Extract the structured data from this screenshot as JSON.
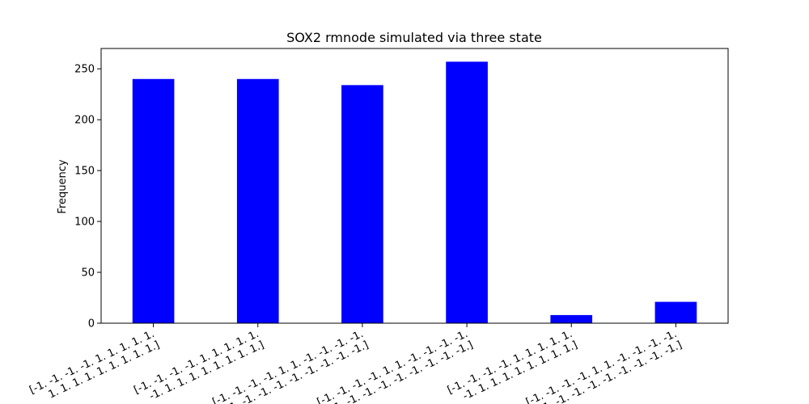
{
  "chart_data": {
    "type": "bar",
    "title": "SOX2 rmnode simulated via three state",
    "xlabel": "",
    "ylabel": "Frequency",
    "ylim": [
      0,
      270
    ],
    "yticks": [
      0,
      50,
      100,
      150,
      200,
      250
    ],
    "grid": false,
    "bar_color": "#0000ff",
    "categories": [
      [
        "[-1. -1. -1. -1. 1. 1. 1. 1. 1.",
        "1. 1. 1. 1. 1. 1. 1. 1. 1.]"
      ],
      [
        "[-1. -1. -1. -1. 1. 1. 1. 1. 1.",
        "-1. 1. 1. 1. 1. 1. 1. 1. 1.]"
      ],
      [
        "[-1. -1. -1. -1. 1. 1. -1. -1. -1. -1.",
        "1. -1. -1. -1. -1. -1. -1. -1. -1.]"
      ],
      [
        "[-1. -1. -1. -1. 1. 1. -1. -1. -1. -1.",
        "-1. -1. -1. -1. -1. -1. -1. -1. -1.]"
      ],
      [
        "[-1. -1. -1. -1. 1. 1. 1. 1. 1.",
        "-1. 1. 1. 1. 1. 1. 1. 1. 1.]"
      ],
      [
        "[-1. -1. -1. -1. 1. 1. -1. -1. -1. -1.",
        "-1. -1. -1. -1. -1. -1. -1. -1. -1.]"
      ]
    ],
    "values": [
      240,
      240,
      234,
      257,
      8,
      21
    ]
  }
}
